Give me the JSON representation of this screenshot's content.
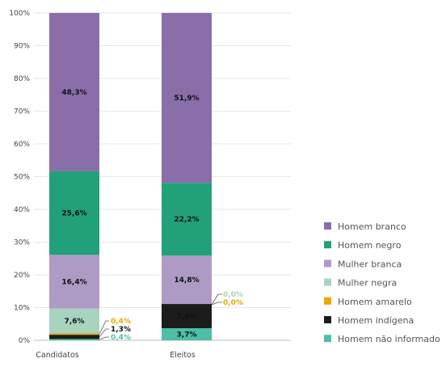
{
  "chart_data": {
    "type": "bar",
    "stacked": true,
    "categories": [
      "Candidatos",
      "Eleitos"
    ],
    "ylim": [
      0,
      100
    ],
    "yticks": [
      "0%",
      "10%",
      "20%",
      "30%",
      "40%",
      "50%",
      "60%",
      "70%",
      "80%",
      "90%",
      "100%"
    ],
    "grid": true,
    "legend_position": "right",
    "series": [
      {
        "name": "Homem não informado",
        "color": "#4dbfa8",
        "values": [
          0.4,
          3.7
        ],
        "labels": [
          "0,4%",
          "3,7%"
        ],
        "label_style": [
          "outside",
          "inside"
        ]
      },
      {
        "name": "Homem indígena",
        "color": "#1c1c1c",
        "values": [
          1.3,
          7.4
        ],
        "labels": [
          "1,3%",
          "7,4%"
        ],
        "label_style": [
          "outside",
          "inside"
        ]
      },
      {
        "name": "Homem amarelo",
        "color": "#f0a500",
        "values": [
          0.4,
          0.0
        ],
        "labels": [
          "0,4%",
          "0,0%"
        ],
        "label_style": [
          "outside",
          "outside"
        ]
      },
      {
        "name": "Mulher negra",
        "color": "#a8d3bf",
        "values": [
          7.6,
          0.0
        ],
        "labels": [
          "7,6%",
          "0,0%"
        ],
        "label_style": [
          "inside",
          "outside"
        ]
      },
      {
        "name": "Mulher branca",
        "color": "#ad9bc6",
        "values": [
          16.4,
          14.8
        ],
        "labels": [
          "16,4%",
          "14,8%"
        ],
        "label_style": [
          "inside",
          "inside"
        ]
      },
      {
        "name": "Homem negro",
        "color": "#22a07a",
        "values": [
          25.6,
          22.2
        ],
        "labels": [
          "25,6%",
          "22,2%"
        ],
        "label_style": [
          "inside",
          "inside"
        ]
      },
      {
        "name": "Homem branco",
        "color": "#8a6ea9",
        "values": [
          48.3,
          51.9
        ],
        "labels": [
          "48,3%",
          "51,9%"
        ],
        "label_style": [
          "inside",
          "inside"
        ]
      }
    ],
    "legend_order": [
      "Homem branco",
      "Homem negro",
      "Mulher branca",
      "Mulher negra",
      "Homem amarelo",
      "Homem indígena",
      "Homem não informado"
    ]
  }
}
